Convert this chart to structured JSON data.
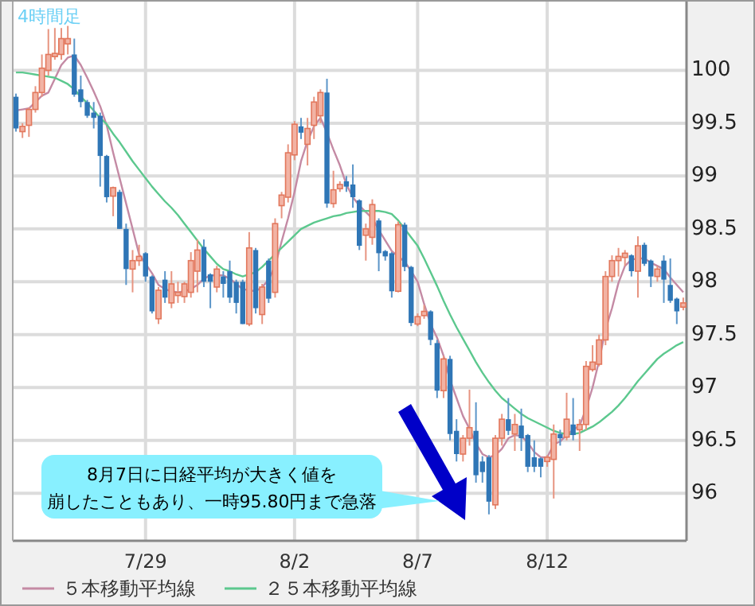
{
  "chart_data": {
    "type": "candlestick",
    "subtitle": "4時間足",
    "categories": [
      null,
      null,
      null,
      null,
      null,
      null,
      null,
      null,
      null,
      null,
      null,
      null,
      null,
      null,
      null,
      null,
      null,
      null,
      null,
      null,
      "7/29",
      null,
      null,
      null,
      null,
      null,
      null,
      null,
      null,
      null,
      null,
      null,
      null,
      null,
      null,
      null,
      null,
      null,
      null,
      null,
      null,
      null,
      null,
      "8/2",
      null,
      null,
      null,
      null,
      null,
      null,
      null,
      null,
      null,
      null,
      null,
      null,
      null,
      null,
      null,
      null,
      null,
      null,
      "8/7",
      null,
      null,
      null,
      null,
      null,
      null,
      null,
      null,
      null,
      null,
      null,
      null,
      null,
      null,
      null,
      null,
      null,
      null,
      null,
      "8/12",
      null,
      null,
      null,
      null,
      null,
      null,
      null,
      null,
      null,
      null,
      null,
      null,
      null,
      null,
      null,
      null,
      null,
      null,
      null,
      null,
      null
    ],
    "ohlc": [
      [
        99.75,
        99.78,
        99.42,
        99.45
      ],
      [
        99.42,
        99.5,
        99.36,
        99.47
      ],
      [
        99.48,
        99.65,
        99.37,
        99.63
      ],
      [
        99.63,
        99.85,
        99.6,
        99.79
      ],
      [
        99.79,
        100.15,
        99.75,
        100.02
      ],
      [
        100.0,
        100.39,
        99.95,
        100.15
      ],
      [
        100.13,
        100.4,
        100.1,
        100.16
      ],
      [
        100.15,
        100.4,
        100.1,
        100.3
      ],
      [
        100.25,
        100.42,
        100.15,
        100.3
      ],
      [
        100.15,
        100.3,
        99.75,
        99.77
      ],
      [
        99.82,
        99.95,
        99.65,
        99.7
      ],
      [
        99.7,
        99.72,
        99.55,
        99.57
      ],
      [
        99.6,
        99.7,
        99.45,
        99.55
      ],
      [
        99.57,
        99.6,
        98.9,
        99.19
      ],
      [
        99.19,
        99.2,
        98.75,
        98.8
      ],
      [
        98.81,
        98.9,
        98.62,
        98.89
      ],
      [
        98.85,
        98.87,
        98.5,
        98.5
      ],
      [
        98.5,
        98.55,
        97.97,
        98.12
      ],
      [
        98.12,
        98.3,
        97.9,
        98.2
      ],
      [
        98.2,
        98.35,
        98.15,
        98.24
      ],
      [
        98.27,
        98.28,
        98.0,
        98.05
      ],
      [
        98.05,
        98.06,
        97.7,
        97.72
      ],
      [
        97.65,
        97.95,
        97.6,
        97.92
      ],
      [
        98.02,
        98.1,
        97.8,
        97.85
      ],
      [
        97.8,
        98.1,
        97.75,
        97.98
      ],
      [
        97.87,
        98.0,
        97.8,
        97.9
      ],
      [
        97.86,
        98.0,
        97.8,
        97.98
      ],
      [
        97.9,
        98.28,
        97.85,
        98.2
      ],
      [
        98.1,
        98.4,
        97.9,
        98.3
      ],
      [
        98.33,
        98.4,
        97.95,
        98.0
      ],
      [
        98.07,
        98.08,
        97.75,
        98.0
      ],
      [
        97.95,
        98.15,
        97.9,
        98.12
      ],
      [
        98.05,
        98.1,
        97.85,
        97.98
      ],
      [
        98.1,
        98.2,
        97.8,
        97.85
      ],
      [
        98.0,
        98.02,
        97.7,
        97.8
      ],
      [
        98.0,
        98.02,
        97.6,
        97.6
      ],
      [
        97.6,
        98.47,
        97.58,
        98.32
      ],
      [
        98.3,
        98.32,
        97.7,
        97.75
      ],
      [
        97.69,
        97.98,
        97.6,
        97.95
      ],
      [
        98.2,
        98.22,
        97.8,
        97.84
      ],
      [
        97.9,
        98.6,
        97.85,
        98.55
      ],
      [
        98.72,
        98.85,
        98.6,
        98.82
      ],
      [
        98.8,
        99.3,
        98.75,
        99.22
      ],
      [
        99.2,
        99.52,
        99.15,
        99.49
      ],
      [
        99.47,
        99.55,
        99.35,
        99.41
      ],
      [
        99.3,
        99.55,
        99.1,
        99.45
      ],
      [
        99.48,
        99.75,
        99.35,
        99.7
      ],
      [
        99.57,
        99.82,
        99.5,
        99.79
      ],
      [
        99.79,
        99.92,
        98.7,
        98.74
      ],
      [
        98.74,
        99.05,
        98.7,
        98.87
      ],
      [
        98.88,
        98.95,
        98.85,
        98.92
      ],
      [
        98.95,
        99.0,
        98.85,
        98.9
      ],
      [
        98.92,
        99.11,
        98.7,
        98.8
      ],
      [
        98.77,
        98.78,
        98.3,
        98.34
      ],
      [
        98.44,
        98.55,
        98.2,
        98.5
      ],
      [
        98.42,
        98.78,
        98.35,
        98.73
      ],
      [
        98.58,
        98.6,
        98.1,
        98.27
      ],
      [
        98.29,
        98.3,
        98.2,
        98.24
      ],
      [
        98.27,
        98.28,
        97.85,
        97.91
      ],
      [
        97.91,
        98.57,
        97.9,
        98.54
      ],
      [
        98.54,
        98.56,
        98.1,
        98.14
      ],
      [
        98.14,
        98.15,
        97.58,
        97.61
      ],
      [
        97.6,
        97.7,
        97.58,
        97.67
      ],
      [
        97.68,
        97.78,
        97.65,
        97.72
      ],
      [
        97.72,
        97.73,
        97.4,
        97.45
      ],
      [
        97.42,
        97.45,
        96.9,
        96.97
      ],
      [
        96.97,
        97.3,
        96.9,
        97.27
      ],
      [
        97.27,
        97.3,
        96.5,
        96.56
      ],
      [
        96.59,
        96.7,
        96.3,
        96.37
      ],
      [
        96.37,
        96.55,
        96.3,
        96.52
      ],
      [
        96.52,
        96.98,
        96.45,
        96.62
      ],
      [
        96.59,
        96.86,
        96.1,
        96.17
      ],
      [
        96.3,
        96.35,
        96.1,
        96.2
      ],
      [
        96.34,
        96.36,
        95.8,
        95.92
      ],
      [
        95.89,
        96.55,
        95.85,
        96.52
      ],
      [
        96.52,
        96.75,
        96.45,
        96.7
      ],
      [
        96.7,
        96.9,
        96.55,
        96.59
      ],
      [
        96.56,
        96.75,
        96.4,
        96.65
      ],
      [
        96.64,
        96.8,
        96.4,
        96.52
      ],
      [
        96.55,
        96.56,
        96.2,
        96.25
      ],
      [
        96.34,
        96.5,
        96.2,
        96.25
      ],
      [
        96.33,
        96.34,
        96.15,
        96.25
      ],
      [
        96.3,
        96.36,
        96.25,
        96.34
      ],
      [
        96.32,
        96.65,
        95.95,
        96.56
      ],
      [
        96.56,
        96.6,
        96.45,
        96.52
      ],
      [
        96.53,
        96.95,
        96.5,
        96.7
      ],
      [
        96.65,
        96.9,
        96.5,
        96.55
      ],
      [
        96.6,
        96.7,
        96.4,
        96.65
      ],
      [
        96.65,
        97.25,
        96.6,
        97.2
      ],
      [
        97.17,
        97.4,
        97.15,
        97.24
      ],
      [
        97.22,
        97.5,
        97.2,
        97.45
      ],
      [
        97.45,
        98.1,
        97.4,
        98.05
      ],
      [
        98.05,
        98.25,
        98.0,
        98.2
      ],
      [
        98.2,
        98.32,
        98.05,
        98.24
      ],
      [
        98.23,
        98.3,
        98.15,
        98.27
      ],
      [
        98.25,
        98.26,
        98.05,
        98.1
      ],
      [
        98.1,
        98.43,
        97.85,
        98.34
      ],
      [
        98.35,
        98.37,
        98.15,
        98.17
      ],
      [
        98.2,
        98.21,
        97.95,
        98.05
      ],
      [
        98.05,
        98.15,
        98.0,
        98.12
      ],
      [
        98.2,
        98.25,
        97.8,
        98.02
      ],
      [
        97.97,
        98.22,
        97.8,
        97.82
      ],
      [
        97.84,
        97.85,
        97.6,
        97.72
      ],
      [
        97.76,
        97.85,
        97.73,
        97.8
      ]
    ],
    "series": [
      {
        "name": "５本移動平均線",
        "type": "line",
        "color": "#c48aa4",
        "values": [
          99.62,
          99.63,
          99.64,
          99.7,
          99.76,
          99.79,
          99.92,
          100.05,
          100.12,
          100.14,
          100.05,
          99.93,
          99.8,
          99.66,
          99.48,
          99.22,
          98.98,
          98.74,
          98.5,
          98.26,
          98.17,
          98.08,
          97.97,
          97.93,
          97.91,
          97.9,
          97.91,
          97.93,
          97.97,
          98.03,
          98.06,
          98.06,
          98.06,
          98.03,
          97.98,
          97.93,
          97.92,
          97.91,
          97.95,
          98.02,
          98.15,
          98.38,
          98.6,
          98.85,
          99.14,
          99.33,
          99.47,
          99.55,
          99.41,
          99.25,
          99.1,
          98.92,
          98.8,
          98.72,
          98.66,
          98.6,
          98.49,
          98.39,
          98.29,
          98.24,
          98.19,
          98.1,
          98.0,
          97.79,
          97.6,
          97.47,
          97.3,
          97.07,
          96.9,
          96.73,
          96.61,
          96.47,
          96.37,
          96.34,
          96.36,
          96.42,
          96.52,
          96.55,
          96.54,
          96.48,
          96.39,
          96.34,
          96.34,
          96.46,
          96.49,
          96.55,
          96.6,
          96.64,
          96.8,
          97.0,
          97.25,
          97.55,
          97.75,
          97.99,
          98.15,
          98.21,
          98.22,
          98.22,
          98.18,
          98.15,
          98.12,
          98.04,
          97.97,
          97.9
        ]
      },
      {
        "name": "２５本移動平均線",
        "type": "line",
        "color": "#5cc88e",
        "values": [
          99.98,
          99.98,
          99.97,
          99.96,
          99.95,
          99.94,
          99.93,
          99.9,
          99.87,
          99.82,
          99.75,
          99.69,
          99.62,
          99.55,
          99.49,
          99.4,
          99.32,
          99.23,
          99.14,
          99.06,
          98.98,
          98.9,
          98.83,
          98.76,
          98.7,
          98.63,
          98.55,
          98.47,
          98.39,
          98.31,
          98.24,
          98.17,
          98.12,
          98.1,
          98.07,
          98.05,
          98.07,
          98.09,
          98.14,
          98.2,
          98.26,
          98.32,
          98.38,
          98.44,
          98.5,
          98.53,
          98.56,
          98.58,
          98.6,
          98.62,
          98.63,
          98.65,
          98.66,
          98.67,
          98.67,
          98.67,
          98.67,
          98.66,
          98.64,
          98.58,
          98.5,
          98.42,
          98.34,
          98.22,
          98.09,
          97.96,
          97.82,
          97.69,
          97.57,
          97.46,
          97.35,
          97.24,
          97.14,
          97.05,
          96.97,
          96.9,
          96.85,
          96.8,
          96.75,
          96.71,
          96.68,
          96.65,
          96.62,
          96.59,
          96.57,
          96.56,
          96.56,
          96.57,
          96.6,
          96.63,
          96.67,
          96.72,
          96.77,
          96.83,
          96.9,
          96.98,
          97.06,
          97.13,
          97.2,
          97.27,
          97.32,
          97.36,
          97.4,
          97.43
        ]
      }
    ],
    "ylim": [
      95.55,
      100.65
    ],
    "yticks": [
      96,
      {
        "value": 96.5,
        "label": "96.5"
      },
      97,
      {
        "value": 97.5,
        "label": "97.5"
      },
      98,
      {
        "value": 98.5,
        "label": "98.5"
      },
      99,
      {
        "value": 99.5,
        "label": "99.5"
      },
      100
    ],
    "grid": true,
    "legend": "bottom",
    "annotations": [
      "8月7日に日経平均が大きく値を",
      "崩したこともあり、一時95.80円まで急落"
    ]
  }
}
